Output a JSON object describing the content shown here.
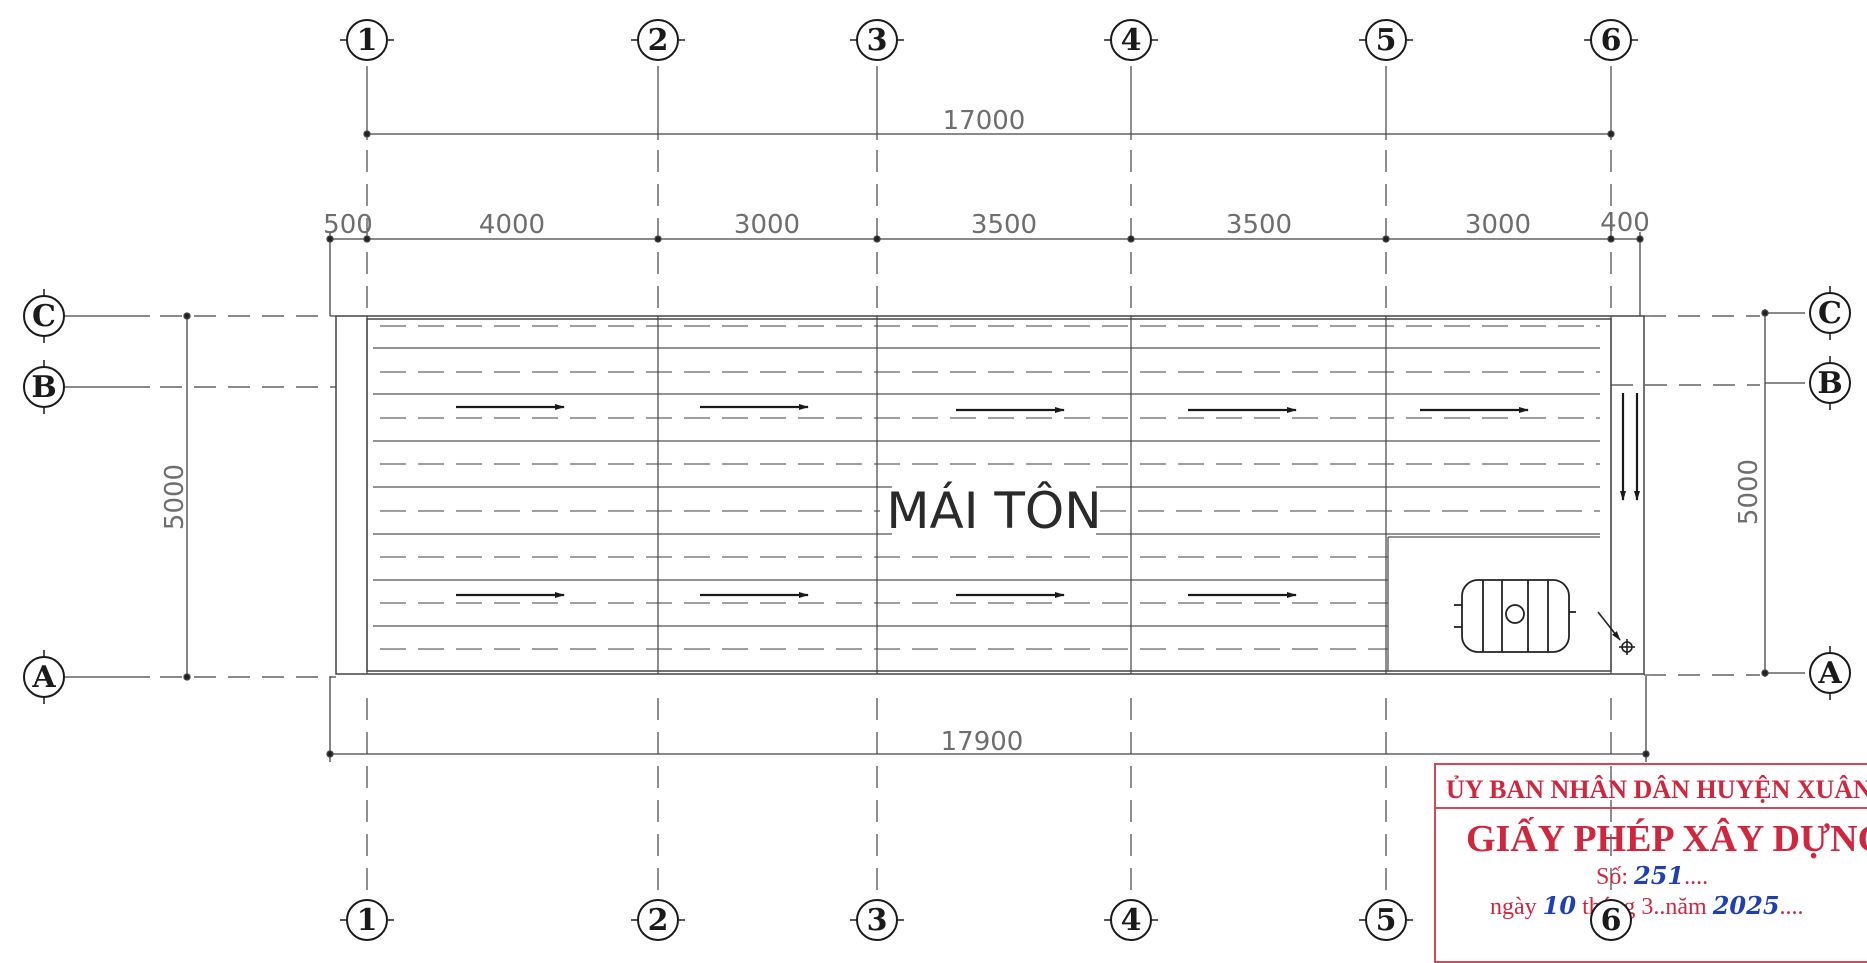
{
  "grid": {
    "vertical_axes": [
      "1",
      "2",
      "3",
      "4",
      "5",
      "6"
    ],
    "horizontal_axes": [
      "C",
      "B",
      "A"
    ]
  },
  "dimensions": {
    "overall_top": "17000",
    "spans_top": [
      "500",
      "4000",
      "3000",
      "3500",
      "3500",
      "3000",
      "400"
    ],
    "overall_bottom": "17900",
    "left_vertical": "5000",
    "right_vertical": "5000"
  },
  "roof_label": "MÁI TÔN",
  "drawing_color": "#1a1a1a",
  "stamp": {
    "authority": "ỦY BAN NHÂN DÂN HUYỆN XUÂN LỘC",
    "title": "GIẤY PHÉP XÂY DỰNG",
    "number_label": "Số:",
    "number_value": "251",
    "number_dots": "....",
    "date_day_label": "ngày",
    "date_day": "10",
    "date_month_label": "tháng",
    "date_month": "3",
    "date_year_label": "..năm",
    "date_year": "2025",
    "date_dots": "....",
    "color": "#d0273f"
  }
}
